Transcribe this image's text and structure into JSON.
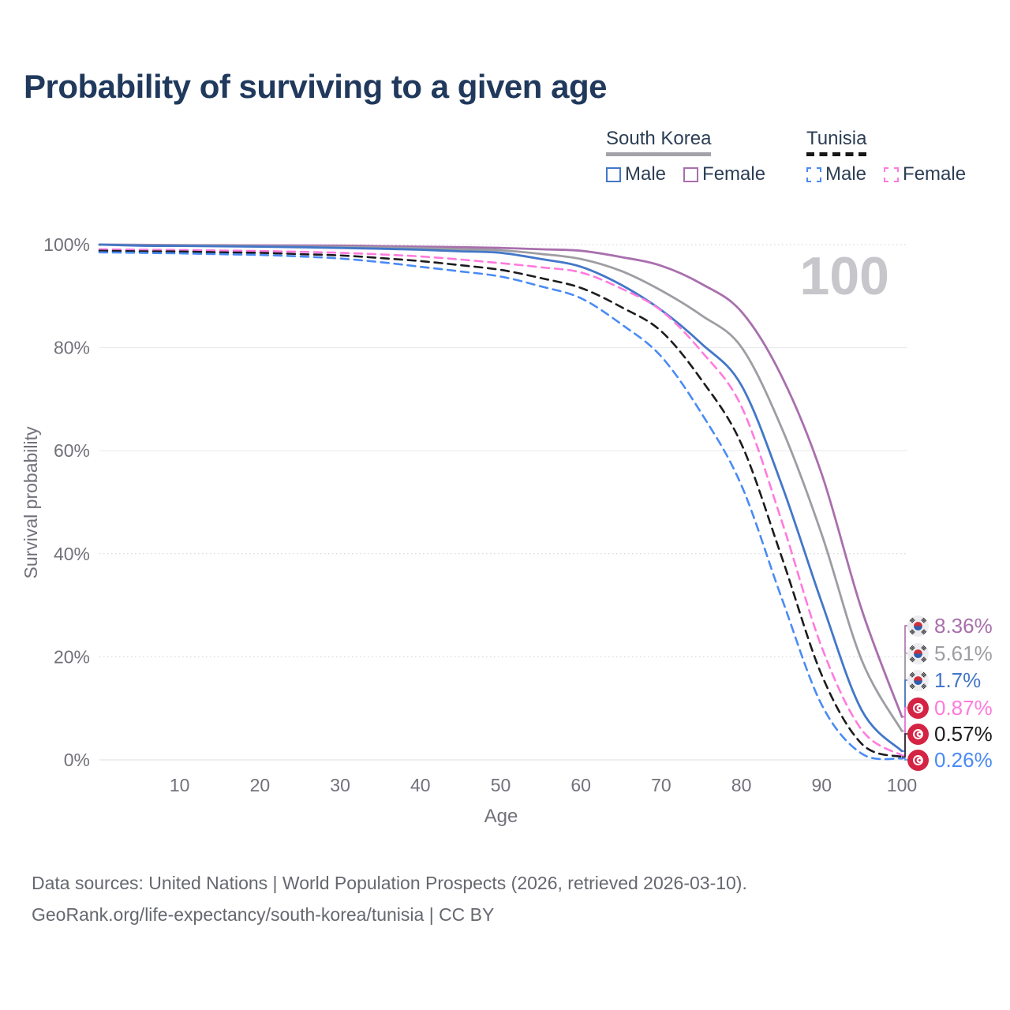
{
  "title": "Probability of surviving to a given age",
  "watermark": "100",
  "legend": {
    "groups": [
      {
        "name": "South Korea",
        "underline_color": "#a2a2a8",
        "underline_style": "solid",
        "items": [
          {
            "label": "Male",
            "color": "#4377c8",
            "dash": false
          },
          {
            "label": "Female",
            "color": "#a96fad",
            "dash": false
          }
        ]
      },
      {
        "name": "Tunisia",
        "underline_color": "#17171a",
        "underline_style": "dashed",
        "items": [
          {
            "label": "Male",
            "color": "#4a8bf5",
            "dash": true
          },
          {
            "label": "Female",
            "color": "#ff7ade",
            "dash": true
          }
        ]
      }
    ]
  },
  "chart_data": {
    "type": "line",
    "title": "Probability of surviving to a given age",
    "xlabel": "Age",
    "ylabel": "Survival probability",
    "xlim": [
      0,
      100
    ],
    "ylim": [
      0,
      100
    ],
    "x_ticks": [
      10,
      20,
      30,
      40,
      50,
      60,
      70,
      80,
      90,
      100
    ],
    "y_ticks": [
      {
        "label": "0%",
        "value": 0,
        "style": "solid"
      },
      {
        "label": "20%",
        "value": 20,
        "style": "dotted"
      },
      {
        "label": "40%",
        "value": 40,
        "style": "dotted"
      },
      {
        "label": "60%",
        "value": 60,
        "style": "solid"
      },
      {
        "label": "80%",
        "value": 80,
        "style": "solid"
      },
      {
        "label": "100%",
        "value": 100,
        "style": "dotted"
      }
    ],
    "legend_position": "top-right",
    "grid": true,
    "x": [
      0,
      5,
      10,
      15,
      20,
      25,
      30,
      35,
      40,
      45,
      50,
      55,
      60,
      65,
      70,
      75,
      80,
      85,
      90,
      95,
      100
    ],
    "series": [
      {
        "id": "south-korea-female",
        "name": "South Korea (female)",
        "country": "South Korea",
        "color": "#a96fad",
        "style": "solid",
        "flag": "south-korea",
        "end_label": "8.36%",
        "values": [
          100,
          99.95,
          99.9,
          99.88,
          99.85,
          99.82,
          99.8,
          99.7,
          99.6,
          99.5,
          99.35,
          99.1,
          98.8,
          97.6,
          95.9,
          92.4,
          87.0,
          74.5,
          55.5,
          29.1,
          8.36
        ]
      },
      {
        "id": "south-korea-all",
        "name": "South Korea (all)",
        "country": "South Korea",
        "color": "#9d9da3",
        "style": "solid",
        "flag": "south-korea",
        "end_label": "5.61%",
        "values": [
          100,
          99.9,
          99.85,
          99.8,
          99.7,
          99.62,
          99.55,
          99.45,
          99.3,
          99.1,
          98.9,
          98.2,
          97.2,
          94.9,
          91.1,
          86.3,
          80.1,
          64.5,
          43.8,
          19.3,
          5.61
        ]
      },
      {
        "id": "south-korea-male",
        "name": "South Korea (male)",
        "country": "South Korea",
        "color": "#4377c8",
        "style": "solid",
        "flag": "south-korea",
        "end_label": "1.7%",
        "values": [
          100,
          99.8,
          99.75,
          99.68,
          99.6,
          99.5,
          99.35,
          99.2,
          99.0,
          98.7,
          98.4,
          97.2,
          95.7,
          92.2,
          87.3,
          80.8,
          72.7,
          53.5,
          30.6,
          9.6,
          1.7
        ]
      },
      {
        "id": "tunisia-female",
        "name": "Tunisia (female)",
        "country": "Tunisia",
        "color": "#ff7ade",
        "style": "dashed",
        "flag": "tunisia",
        "end_label": "0.87%",
        "values": [
          99.1,
          99.0,
          98.95,
          98.85,
          98.75,
          98.6,
          98.4,
          98.1,
          97.7,
          97.1,
          96.4,
          95.6,
          94.6,
          91.5,
          87.2,
          79.3,
          68.6,
          46.5,
          21.9,
          5.8,
          0.87
        ]
      },
      {
        "id": "tunisia-all",
        "name": "Tunisia (all)",
        "country": "Tunisia",
        "color": "#1c1c1f",
        "style": "dashed",
        "flag": "tunisia",
        "end_label": "0.57%",
        "values": [
          98.8,
          98.7,
          98.65,
          98.5,
          98.4,
          98.15,
          97.9,
          97.4,
          96.8,
          96.0,
          95.1,
          93.5,
          91.6,
          87.9,
          83.2,
          73.8,
          61.3,
          39.5,
          16.5,
          3.1,
          0.57
        ]
      },
      {
        "id": "tunisia-male",
        "name": "Tunisia (male)",
        "country": "Tunisia",
        "color": "#4a8bf5",
        "style": "dashed",
        "flag": "tunisia",
        "end_label": "0.26%",
        "values": [
          98.5,
          98.4,
          98.3,
          98.15,
          98.0,
          97.7,
          97.3,
          96.6,
          95.7,
          94.8,
          93.8,
          91.9,
          89.6,
          84.6,
          78.3,
          67.3,
          53.3,
          31.5,
          10.7,
          1.2,
          0.26
        ]
      }
    ]
  },
  "footer": {
    "line1": "Data sources: United Nations | World Population Prospects (2026, retrieved 2026-03-10).",
    "line2": "GeoRank.org/life-expectancy/south-korea/tunisia | CC BY"
  }
}
